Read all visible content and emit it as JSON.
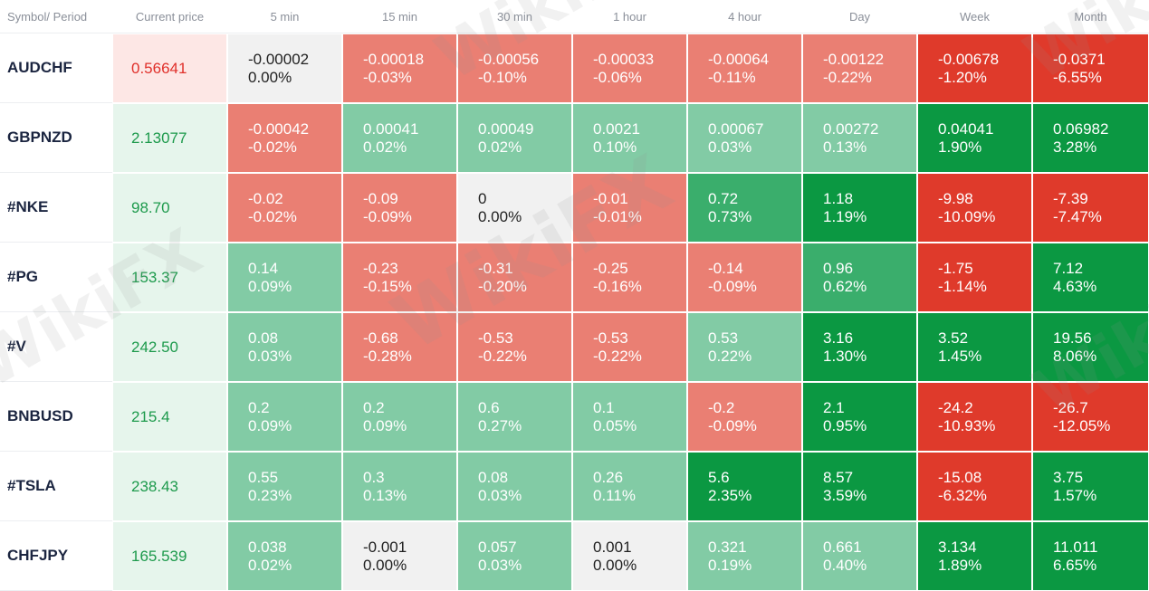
{
  "header": {
    "symbol_period": "Symbol/ Period",
    "current_price": "Current price",
    "periods": [
      "5 min",
      "15 min",
      "30 min",
      "1 hour",
      "4 hour",
      "Day",
      "Week",
      "Month"
    ]
  },
  "watermark_text": "WikiFX",
  "rows": [
    {
      "symbol": "AUDCHF",
      "price": "0.56641",
      "price_dir": "down",
      "cells": [
        {
          "v": "-0.00002",
          "p": "0.00%",
          "c": "zero"
        },
        {
          "v": "-0.00018",
          "p": "-0.03%",
          "c": "neg1"
        },
        {
          "v": "-0.00056",
          "p": "-0.10%",
          "c": "neg1"
        },
        {
          "v": "-0.00033",
          "p": "-0.06%",
          "c": "neg1"
        },
        {
          "v": "-0.00064",
          "p": "-0.11%",
          "c": "neg1"
        },
        {
          "v": "-0.00122",
          "p": "-0.22%",
          "c": "neg1"
        },
        {
          "v": "-0.00678",
          "p": "-1.20%",
          "c": "neg3"
        },
        {
          "v": "-0.0371",
          "p": "-6.55%",
          "c": "neg3"
        }
      ]
    },
    {
      "symbol": "GBPNZD",
      "price": "2.13077",
      "price_dir": "up",
      "cells": [
        {
          "v": "-0.00042",
          "p": "-0.02%",
          "c": "neg1"
        },
        {
          "v": "0.00041",
          "p": "0.02%",
          "c": "pos1"
        },
        {
          "v": "0.00049",
          "p": "0.02%",
          "c": "pos1"
        },
        {
          "v": "0.0021",
          "p": "0.10%",
          "c": "pos1"
        },
        {
          "v": "0.00067",
          "p": "0.03%",
          "c": "pos1"
        },
        {
          "v": "0.00272",
          "p": "0.13%",
          "c": "pos1"
        },
        {
          "v": "0.04041",
          "p": "1.90%",
          "c": "pos3"
        },
        {
          "v": "0.06982",
          "p": "3.28%",
          "c": "pos3"
        }
      ]
    },
    {
      "symbol": "#NKE",
      "price": "98.70",
      "price_dir": "up",
      "cells": [
        {
          "v": "-0.02",
          "p": "-0.02%",
          "c": "neg1"
        },
        {
          "v": "-0.09",
          "p": "-0.09%",
          "c": "neg1"
        },
        {
          "v": "0",
          "p": "0.00%",
          "c": "zero"
        },
        {
          "v": "-0.01",
          "p": "-0.01%",
          "c": "neg1"
        },
        {
          "v": "0.72",
          "p": "0.73%",
          "c": "pos2"
        },
        {
          "v": "1.18",
          "p": "1.19%",
          "c": "pos3"
        },
        {
          "v": "-9.98",
          "p": "-10.09%",
          "c": "neg3"
        },
        {
          "v": "-7.39",
          "p": "-7.47%",
          "c": "neg3"
        }
      ]
    },
    {
      "symbol": "#PG",
      "price": "153.37",
      "price_dir": "up",
      "cells": [
        {
          "v": "0.14",
          "p": "0.09%",
          "c": "pos1"
        },
        {
          "v": "-0.23",
          "p": "-0.15%",
          "c": "neg1"
        },
        {
          "v": "-0.31",
          "p": "-0.20%",
          "c": "neg1"
        },
        {
          "v": "-0.25",
          "p": "-0.16%",
          "c": "neg1"
        },
        {
          "v": "-0.14",
          "p": "-0.09%",
          "c": "neg1"
        },
        {
          "v": "0.96",
          "p": "0.62%",
          "c": "pos2"
        },
        {
          "v": "-1.75",
          "p": "-1.14%",
          "c": "neg3"
        },
        {
          "v": "7.12",
          "p": "4.63%",
          "c": "pos3"
        }
      ]
    },
    {
      "symbol": "#V",
      "price": "242.50",
      "price_dir": "up",
      "cells": [
        {
          "v": "0.08",
          "p": "0.03%",
          "c": "pos1"
        },
        {
          "v": "-0.68",
          "p": "-0.28%",
          "c": "neg1"
        },
        {
          "v": "-0.53",
          "p": "-0.22%",
          "c": "neg1"
        },
        {
          "v": "-0.53",
          "p": "-0.22%",
          "c": "neg1"
        },
        {
          "v": "0.53",
          "p": "0.22%",
          "c": "pos1"
        },
        {
          "v": "3.16",
          "p": "1.30%",
          "c": "pos3"
        },
        {
          "v": "3.52",
          "p": "1.45%",
          "c": "pos3"
        },
        {
          "v": "19.56",
          "p": "8.06%",
          "c": "pos3"
        }
      ]
    },
    {
      "symbol": "BNBUSD",
      "price": "215.4",
      "price_dir": "up",
      "cells": [
        {
          "v": "0.2",
          "p": "0.09%",
          "c": "pos1"
        },
        {
          "v": "0.2",
          "p": "0.09%",
          "c": "pos1"
        },
        {
          "v": "0.6",
          "p": "0.27%",
          "c": "pos1"
        },
        {
          "v": "0.1",
          "p": "0.05%",
          "c": "pos1"
        },
        {
          "v": "-0.2",
          "p": "-0.09%",
          "c": "neg1"
        },
        {
          "v": "2.1",
          "p": "0.95%",
          "c": "pos3"
        },
        {
          "v": "-24.2",
          "p": "-10.93%",
          "c": "neg3"
        },
        {
          "v": "-26.7",
          "p": "-12.05%",
          "c": "neg3"
        }
      ]
    },
    {
      "symbol": "#TSLA",
      "price": "238.43",
      "price_dir": "up",
      "cells": [
        {
          "v": "0.55",
          "p": "0.23%",
          "c": "pos1"
        },
        {
          "v": "0.3",
          "p": "0.13%",
          "c": "pos1"
        },
        {
          "v": "0.08",
          "p": "0.03%",
          "c": "pos1"
        },
        {
          "v": "0.26",
          "p": "0.11%",
          "c": "pos1"
        },
        {
          "v": "5.6",
          "p": "2.35%",
          "c": "pos3"
        },
        {
          "v": "8.57",
          "p": "3.59%",
          "c": "pos3"
        },
        {
          "v": "-15.08",
          "p": "-6.32%",
          "c": "neg3"
        },
        {
          "v": "3.75",
          "p": "1.57%",
          "c": "pos3"
        }
      ]
    },
    {
      "symbol": "CHFJPY",
      "price": "165.539",
      "price_dir": "up",
      "cells": [
        {
          "v": "0.038",
          "p": "0.02%",
          "c": "pos1"
        },
        {
          "v": "-0.001",
          "p": "0.00%",
          "c": "zero"
        },
        {
          "v": "0.057",
          "p": "0.03%",
          "c": "pos1"
        },
        {
          "v": "0.001",
          "p": "0.00%",
          "c": "zero"
        },
        {
          "v": "0.321",
          "p": "0.19%",
          "c": "pos1"
        },
        {
          "v": "0.661",
          "p": "0.40%",
          "c": "pos1"
        },
        {
          "v": "3.134",
          "p": "1.89%",
          "c": "pos3"
        },
        {
          "v": "11.011",
          "p": "6.65%",
          "c": "pos3"
        }
      ]
    }
  ]
}
